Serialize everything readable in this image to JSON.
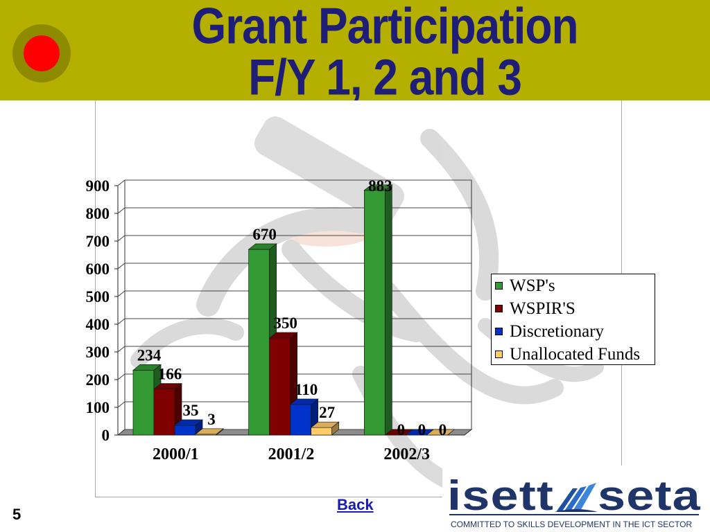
{
  "slide": {
    "title_line1": "Grant Participation",
    "title_line2": "F/Y 1, 2 and 3",
    "page_number": "5",
    "back_link": "Back",
    "bullet_icon": "red-circle-bullet-icon",
    "colors": {
      "banner": "#B5AF00",
      "title": "#1E1E78",
      "bullet": "#FF0000",
      "link": "#1A1AB0"
    }
  },
  "logo": {
    "name_left": "isett",
    "name_right": "seta",
    "emblem_icon": "blue-sail-emblem-icon",
    "tagline": "COMMITTED TO SKILLS DEVELOPMENT IN THE ICT SECTOR",
    "color": "#1F3468"
  },
  "chart_data": {
    "type": "bar",
    "orientation": "vertical",
    "three_d": true,
    "categories": [
      "2000/1",
      "2001/2",
      "2002/3"
    ],
    "series": [
      {
        "name": "WSP's",
        "values": [
          234,
          670,
          883
        ],
        "color": "#339933"
      },
      {
        "name": "WSPIR'S",
        "values": [
          166,
          350,
          0
        ],
        "color": "#800000"
      },
      {
        "name": "Discretionary",
        "values": [
          35,
          110,
          0
        ],
        "color": "#0033CC"
      },
      {
        "name": "Unallocated Funds",
        "values": [
          3,
          27,
          0
        ],
        "color": "#FFCC66"
      }
    ],
    "ylim": [
      0,
      900
    ],
    "yticks": [
      0,
      100,
      200,
      300,
      400,
      500,
      600,
      700,
      800,
      900
    ],
    "grid": true,
    "data_labels": true,
    "legend": "right"
  }
}
